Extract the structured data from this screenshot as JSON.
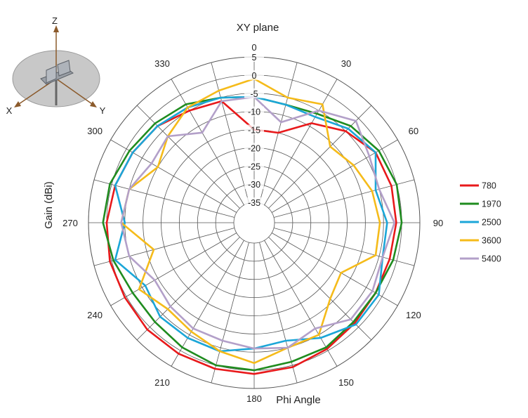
{
  "chart_data": {
    "type": "polar-line",
    "title": "XY plane",
    "xlabel": "Phi  Angle",
    "ylabel": "Gain  (dBi)",
    "r_range": [
      -35,
      5
    ],
    "r_ticks": [
      "5",
      "0",
      "-5",
      "-10",
      "-15",
      "-20",
      "-25",
      "-30",
      "-35"
    ],
    "r_tick_values": [
      5,
      0,
      -5,
      -10,
      -15,
      -20,
      -25,
      -30,
      -35
    ],
    "angle_ticks": [
      "0",
      "30",
      "60",
      "90",
      "120",
      "150",
      "180",
      "210",
      "240",
      "270",
      "300",
      "330"
    ],
    "angle_tick_values": [
      0,
      30,
      60,
      90,
      120,
      150,
      180,
      210,
      240,
      270,
      300,
      330
    ],
    "grid": true,
    "legend_position": "right",
    "angles": [
      0,
      15,
      30,
      45,
      60,
      75,
      90,
      105,
      120,
      135,
      150,
      165,
      180,
      195,
      210,
      225,
      240,
      255,
      270,
      285,
      300,
      315,
      330,
      345
    ],
    "series": [
      {
        "name": "780",
        "color": "#e8191b",
        "values": [
          -15,
          -15,
          -9,
          -5,
          -2,
          -1.5,
          -1.5,
          -2,
          -2,
          -1.5,
          -0.5,
          0.5,
          1,
          1,
          1,
          1,
          0.5,
          0.5,
          0,
          -1,
          -2,
          -3,
          -5,
          -6
        ]
      },
      {
        "name": "1970",
        "color": "#1f8c1f",
        "values": [
          -6,
          -7,
          -6,
          -3,
          -1,
          0,
          0,
          -1,
          -2,
          -2,
          -1,
          -1,
          0,
          0,
          -1,
          -2,
          -2,
          -0.5,
          1,
          0.5,
          -1,
          -2,
          -3,
          -5
        ]
      },
      {
        "name": "2500",
        "color": "#1ba6d8",
        "values": [
          -6,
          -7,
          -7,
          -4,
          -2,
          -6,
          -4,
          -4,
          -1,
          -1,
          -4,
          -7,
          -6,
          -4,
          -4,
          -4,
          -6,
          -1,
          -5,
          -1,
          -2,
          -3,
          -4,
          -5
        ]
      },
      {
        "name": "3600",
        "color": "#f5bb1a",
        "values": [
          -1,
          -5,
          -3,
          -11,
          -9,
          -7,
          -6,
          -6,
          -13,
          -11,
          -5,
          -5,
          -2,
          -4,
          -6,
          -7,
          -4,
          -12,
          -4,
          -5,
          -10,
          -7,
          -4,
          -3
        ]
      },
      {
        "name": "5400",
        "color": "#b3a0c9",
        "values": [
          -6,
          -12,
          -5,
          -1,
          -4,
          -5,
          -2,
          -4,
          -3,
          -3,
          -7,
          -5,
          -6,
          -7,
          -7,
          -8,
          -9,
          -5,
          -4,
          -5,
          -8,
          -7,
          -12,
          -6
        ]
      }
    ]
  },
  "inset": {
    "axis_labels": [
      "Z",
      "X",
      "Y"
    ]
  }
}
